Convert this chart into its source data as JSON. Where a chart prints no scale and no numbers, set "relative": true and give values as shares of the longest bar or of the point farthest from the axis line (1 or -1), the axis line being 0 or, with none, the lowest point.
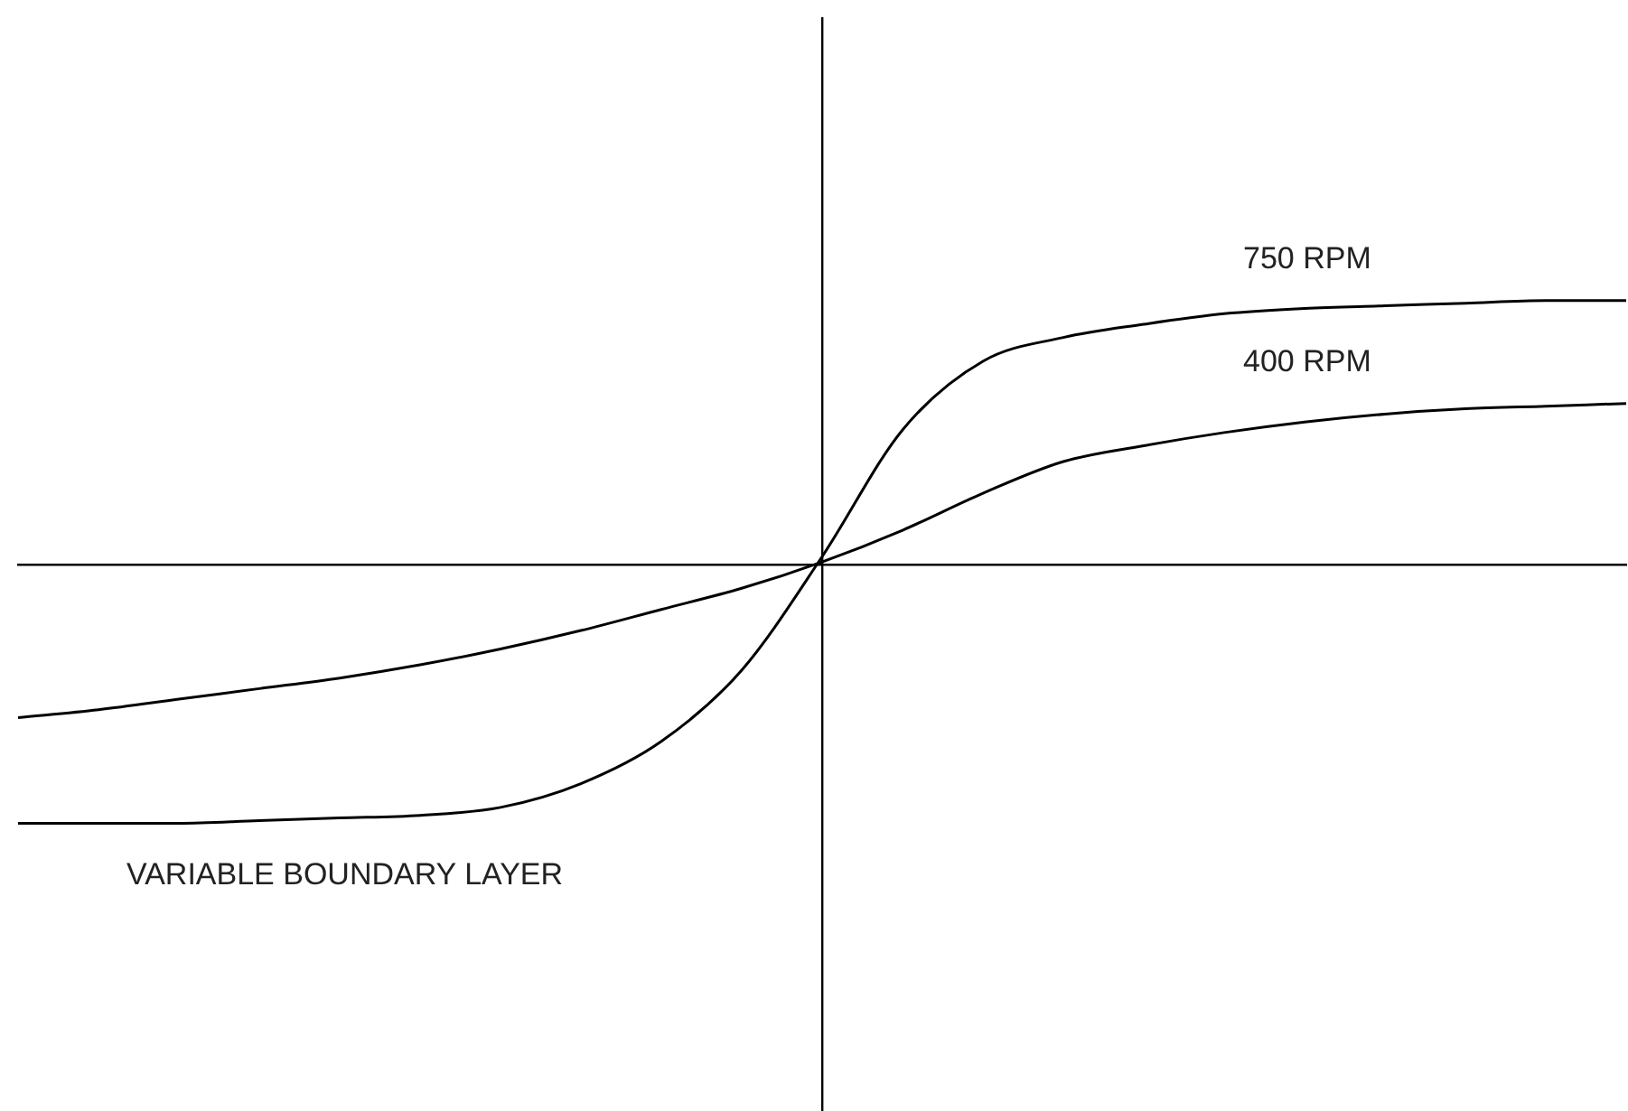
{
  "chart_data": {
    "type": "line",
    "relative": true,
    "categories": [
      null,
      null,
      null,
      null,
      null,
      null,
      null,
      null,
      null,
      null,
      null,
      null,
      null,
      null,
      null,
      null,
      null,
      null,
      null,
      null,
      null
    ],
    "series": [
      {
        "name": "750 RPM",
        "color": "#000000",
        "values": [
          -0.98,
          -0.98,
          -0.98,
          -0.97,
          -0.96,
          -0.95,
          -0.92,
          -0.83,
          -0.67,
          -0.4,
          0.03,
          0.51,
          0.77,
          0.86,
          0.91,
          0.95,
          0.97,
          0.98,
          0.99,
          1,
          1
        ]
      },
      {
        "name": "400 RPM",
        "color": "#000000",
        "values": [
          -0.58,
          -0.55,
          -0.51,
          -0.47,
          -0.43,
          -0.38,
          -0.32,
          -0.25,
          -0.17,
          -0.09,
          0.01,
          0.13,
          0.27,
          0.39,
          0.45,
          0.5,
          0.54,
          0.57,
          0.59,
          0.6,
          0.61
        ]
      }
    ],
    "annotations": [
      "VARIABLE BOUNDARY LAYER"
    ],
    "legend": false,
    "grid": false,
    "marker": "none",
    "line_style": "solid"
  }
}
